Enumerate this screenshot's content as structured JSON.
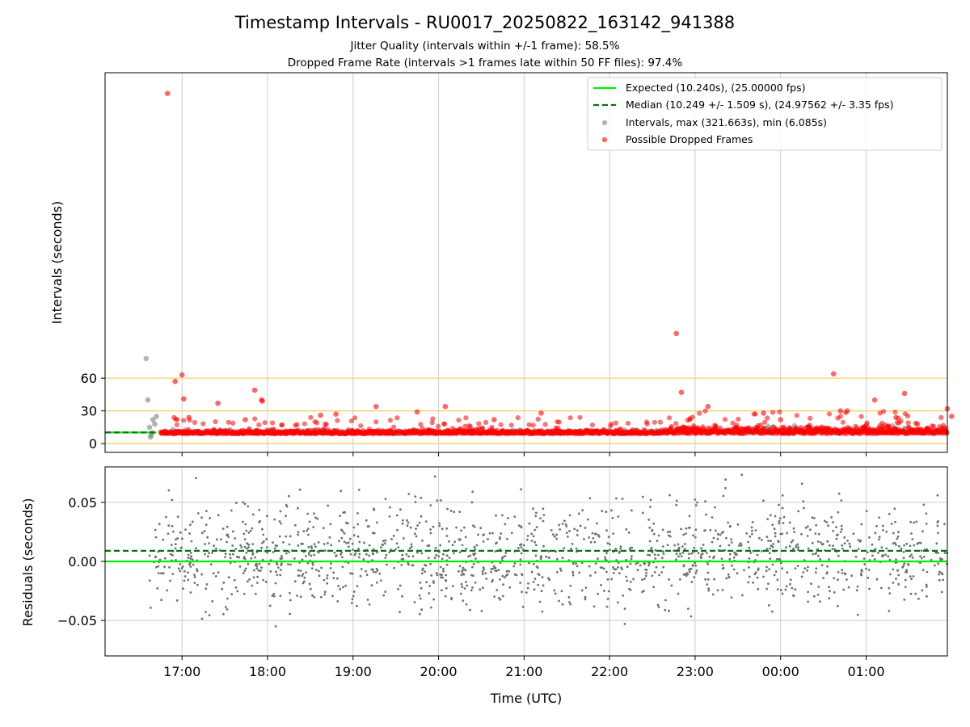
{
  "chart_data": {
    "type": "scatter",
    "title": "Timestamp Intervals - RU0017_20250822_163142_941388",
    "subtitle_lines": [
      "Jitter Quality (intervals within +/-1 frame): 58.5%",
      "Dropped Frame Rate (intervals >1 frames late within 50 FF files): 97.4%"
    ],
    "xlabel": "Time (UTC)",
    "x_ticks": [
      "17:00",
      "18:00",
      "19:00",
      "20:00",
      "21:00",
      "22:00",
      "23:00",
      "00:00",
      "01:00"
    ],
    "x_range_hours": [
      -0.9,
      8.95
    ],
    "top_panel": {
      "ylabel": "Intervals (seconds)",
      "y_ticks": [
        0,
        30,
        60
      ],
      "ylim": [
        -8,
        340
      ],
      "reference_lines": [
        0,
        30,
        60
      ],
      "reference_line_color": "#f5d36a",
      "expected_seconds": 10.24,
      "median_seconds": 10.249,
      "max_seconds": 321.663,
      "min_seconds": 6.085
    },
    "bottom_panel": {
      "ylabel": "Residuals (seconds)",
      "y_ticks": [
        "0.05",
        "0.00",
        "−0.05"
      ],
      "y_tick_values": [
        0.05,
        0.0,
        -0.05
      ],
      "ylim": [
        -0.08,
        0.08
      ],
      "expected_residual": 0.0,
      "median_residual": 0.009
    },
    "legend": {
      "placement": "top-right",
      "entries": [
        {
          "label": "Expected (10.240s), (25.00000 fps)",
          "style": "solid-line",
          "color": "#00ee00"
        },
        {
          "label": "Median (10.249 +/- 1.509 s), (24.97562 +/- 3.35 fps)",
          "style": "dashed-line",
          "color": "#007700"
        },
        {
          "label": "Intervals, max (321.663s), min (6.085s)",
          "style": "marker",
          "color": "#808080"
        },
        {
          "label": "Possible Dropped Frames",
          "style": "marker",
          "color": "#ff0000"
        }
      ]
    },
    "series": [
      {
        "name": "Intervals, max (321.663s), min (6.085s)",
        "color": "#808080",
        "points": [
          [
            -0.42,
            78
          ],
          [
            -0.4,
            40
          ],
          [
            -0.38,
            15
          ],
          [
            -0.36,
            8
          ],
          [
            -0.34,
            22
          ],
          [
            -0.3,
            25
          ],
          [
            -0.32,
            18
          ],
          [
            -0.35,
            10
          ],
          [
            -0.37,
            6
          ]
        ]
      },
      {
        "name": "Possible Dropped Frames",
        "color": "#ff0000",
        "points": [
          [
            -0.17,
            321
          ],
          [
            -0.08,
            57
          ],
          [
            0.0,
            63
          ],
          [
            0.02,
            41
          ],
          [
            0.08,
            24
          ],
          [
            0.42,
            37
          ],
          [
            0.85,
            49
          ],
          [
            0.93,
            40
          ],
          [
            0.94,
            39
          ],
          [
            0.74,
            22
          ],
          [
            1.62,
            26
          ],
          [
            1.8,
            27
          ],
          [
            2.27,
            34
          ],
          [
            2.75,
            29
          ],
          [
            3.08,
            34
          ],
          [
            3.65,
            22
          ],
          [
            4.2,
            28
          ],
          [
            5.78,
            101
          ],
          [
            5.84,
            47
          ],
          [
            6.15,
            34
          ],
          [
            6.8,
            28
          ],
          [
            7.0,
            22
          ],
          [
            7.62,
            64
          ],
          [
            7.7,
            30
          ],
          [
            7.78,
            30
          ],
          [
            8.1,
            40
          ],
          [
            8.35,
            24
          ],
          [
            8.45,
            46
          ],
          [
            8.6,
            18
          ],
          [
            8.95,
            32
          ],
          [
            9.0,
            25
          ]
        ]
      }
    ]
  }
}
